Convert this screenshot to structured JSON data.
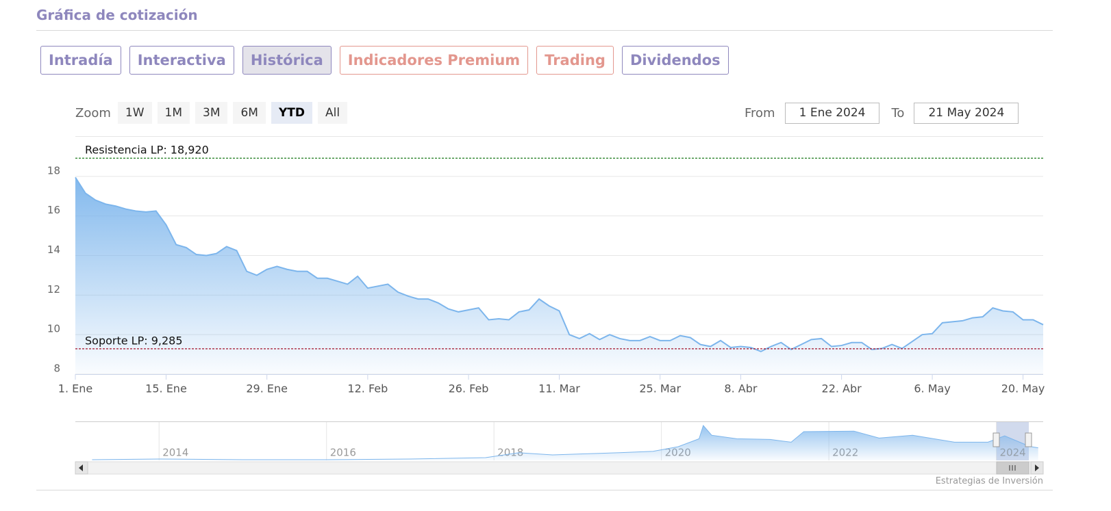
{
  "header": {
    "title": "Gráfica de cotización"
  },
  "tabs": [
    "Intradía",
    "Interactiva",
    "Histórica",
    "Indicadores Premium",
    "Trading",
    "Dividendos"
  ],
  "zoom": {
    "label": "Zoom",
    "buttons": [
      "1W",
      "1M",
      "3M",
      "6M",
      "YTD",
      "All"
    ]
  },
  "range": {
    "from_label": "From",
    "from": "1 Ene 2024",
    "to_label": "To",
    "to": "21 May 2024"
  },
  "credit": "Estrategias de Inversión",
  "chart_data": [
    {
      "type": "area",
      "categories": [
        "1. Ene",
        null,
        null,
        null,
        null,
        null,
        null,
        null,
        null,
        "15. Ene",
        null,
        null,
        null,
        null,
        null,
        null,
        null,
        null,
        null,
        "29. Ene",
        null,
        null,
        null,
        null,
        null,
        null,
        null,
        null,
        null,
        "12. Feb",
        null,
        null,
        null,
        null,
        null,
        null,
        null,
        null,
        null,
        "26. Feb",
        null,
        null,
        null,
        null,
        null,
        null,
        null,
        null,
        "11. Mar",
        null,
        null,
        null,
        null,
        null,
        null,
        null,
        null,
        null,
        "25. Mar",
        null,
        null,
        null,
        null,
        null,
        null,
        null,
        "8. Abr",
        null,
        null,
        null,
        null,
        null,
        null,
        null,
        null,
        null,
        "22. Abr",
        null,
        null,
        null,
        null,
        null,
        null,
        null,
        null,
        "6. May",
        null,
        null,
        null,
        null,
        null,
        null,
        null,
        null,
        "20. May",
        null,
        null
      ],
      "values": [
        17.95,
        17.15,
        16.8,
        16.6,
        16.5,
        16.35,
        16.25,
        16.2,
        16.25,
        15.55,
        14.55,
        14.4,
        14.05,
        14.0,
        14.1,
        14.45,
        14.25,
        13.2,
        13.0,
        13.3,
        13.45,
        13.3,
        13.2,
        13.2,
        12.85,
        12.85,
        12.7,
        12.55,
        12.95,
        12.35,
        12.45,
        12.55,
        12.15,
        11.95,
        11.8,
        11.8,
        11.6,
        11.3,
        11.15,
        11.25,
        11.35,
        10.75,
        10.8,
        10.75,
        11.15,
        11.25,
        11.8,
        11.45,
        11.2,
        10.0,
        9.8,
        10.05,
        9.75,
        10.0,
        9.8,
        9.7,
        9.7,
        9.9,
        9.7,
        9.7,
        9.95,
        9.85,
        9.5,
        9.4,
        9.7,
        9.35,
        9.4,
        9.35,
        9.15,
        9.4,
        9.6,
        9.25,
        9.5,
        9.75,
        9.8,
        9.4,
        9.45,
        9.6,
        9.6,
        9.25,
        9.3,
        9.5,
        9.3,
        9.65,
        10.0,
        10.05,
        10.6,
        10.65,
        10.7,
        10.85,
        10.9,
        11.35,
        11.2,
        11.15,
        10.75,
        10.75,
        10.5
      ],
      "color": "#7cb5ec",
      "ylim": [
        8,
        20
      ],
      "yticks": [
        8,
        10,
        12,
        14,
        16,
        18
      ],
      "grid": true,
      "plot_lines": [
        {
          "label": "Resistencia LP: 18,920",
          "value": 18.92,
          "color": "#1b7a1b"
        },
        {
          "label": "Soporte LP: 9,285",
          "value": 9.285,
          "color": "#a3122a"
        }
      ]
    },
    {
      "type": "area",
      "x": [
        2013.2,
        2014,
        2015,
        2016,
        2017,
        2017.9,
        2018.3,
        2018.7,
        2019,
        2019.5,
        2019.9,
        2020.2,
        2020.45,
        2020.5,
        2020.6,
        2020.9,
        2021.3,
        2021.55,
        2021.7,
        2022.3,
        2022.6,
        2023.0,
        2023.5,
        2023.9,
        2024.1,
        2024.4,
        2024.5
      ],
      "values": [
        0.5,
        1,
        0.5,
        0.5,
        1,
        2,
        5.6,
        4,
        4.6,
        5.6,
        6.6,
        10,
        15.8,
        25.5,
        18.4,
        15.8,
        15.3,
        13.3,
        21,
        21.4,
        16.3,
        18.4,
        13.3,
        13.3,
        17.9,
        10.2,
        9.2
      ],
      "color": "#7cb5ec",
      "xlim": [
        2013.0,
        2024.56
      ],
      "ylim": [
        0,
        28
      ],
      "xticks": [
        2014,
        2016,
        2018,
        2020,
        2022,
        2024
      ],
      "grid": true
    }
  ]
}
